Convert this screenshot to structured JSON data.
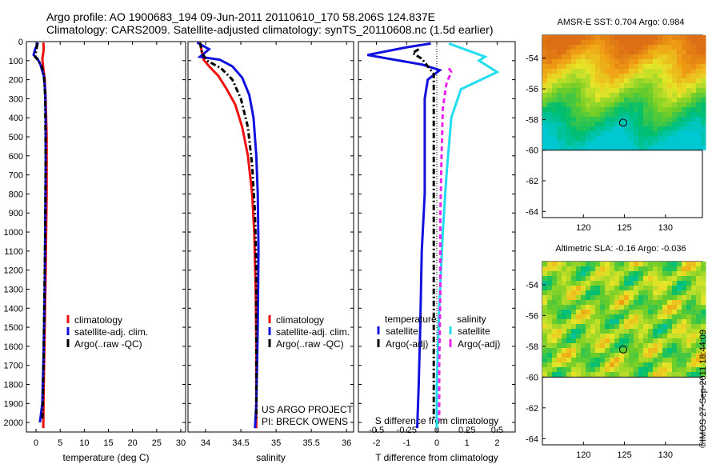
{
  "header": {
    "line1": "Argo profile: AO 1900683_194 09-Jun-2011 20110610_170 58.206S 124.837E",
    "line2": "Climatology: CARS2009. Satellite-adjusted climatology: synTS_20110608.nc (1.5d earlier)"
  },
  "side_label": "©IMOS 27-Sep-2011 18:44:09",
  "colors": {
    "climatology": "#ee1111",
    "satellite": "#1111dd",
    "argo": "#000000",
    "sal_satellite": "#22ddee",
    "sal_argo": "#ee22ee"
  },
  "chart_data": [
    {
      "type": "line",
      "xlabel": "temperature (deg C)",
      "ylabel": "",
      "xlim": [
        -2,
        31
      ],
      "ylim": [
        2050,
        0
      ],
      "xticks": [
        0,
        5,
        10,
        15,
        20,
        25,
        30
      ],
      "yticks": [
        0,
        100,
        200,
        300,
        400,
        500,
        600,
        700,
        800,
        900,
        1000,
        1100,
        1200,
        1300,
        1400,
        1500,
        1600,
        1700,
        1800,
        1900,
        2000
      ],
      "legend": [
        "climatology",
        "satellite-adj. clim.",
        "Argo(..raw -QC)"
      ],
      "legend_position": "lower-right",
      "series": [
        {
          "name": "climatology",
          "style": "solid",
          "color": "climatology",
          "points": [
            [
              1.5,
              5
            ],
            [
              1.6,
              30
            ],
            [
              1.5,
              60
            ],
            [
              1.3,
              90
            ],
            [
              1.5,
              140
            ],
            [
              1.8,
              200
            ],
            [
              2.0,
              300
            ],
            [
              2.2,
              500
            ],
            [
              2.2,
              800
            ],
            [
              2.1,
              1000
            ],
            [
              2.0,
              1200
            ],
            [
              1.8,
              1500
            ],
            [
              1.6,
              1800
            ],
            [
              1.5,
              2030
            ]
          ]
        },
        {
          "name": "satellite-adj. clim.",
          "style": "solid",
          "color": "satellite",
          "points": [
            [
              0.4,
              5
            ],
            [
              -0.2,
              40
            ],
            [
              -0.5,
              70
            ],
            [
              0.3,
              90
            ],
            [
              0.9,
              120
            ],
            [
              1.6,
              180
            ],
            [
              1.9,
              260
            ],
            [
              2.0,
              400
            ],
            [
              2.0,
              700
            ],
            [
              1.9,
              1000
            ],
            [
              1.8,
              1300
            ],
            [
              1.6,
              1600
            ],
            [
              1.3,
              1900
            ],
            [
              0.8,
              2000
            ]
          ]
        },
        {
          "name": "Argo(..raw -QC)",
          "style": "dashdot",
          "color": "argo",
          "points": [
            [
              0.3,
              10
            ],
            [
              0.0,
              50
            ],
            [
              -0.2,
              80
            ],
            [
              0.5,
              100
            ],
            [
              1.2,
              130
            ],
            [
              1.7,
              190
            ],
            [
              1.9,
              300
            ],
            [
              2.0,
              600
            ],
            [
              1.9,
              1000
            ],
            [
              1.7,
              1400
            ],
            [
              1.5,
              1800
            ],
            [
              1.3,
              1990
            ]
          ]
        }
      ]
    },
    {
      "type": "line",
      "xlabel": "salinity",
      "xlim": [
        33.75,
        36.1
      ],
      "ylim": [
        2050,
        0
      ],
      "xticks": [
        34,
        34.5,
        35,
        35.5,
        36
      ],
      "annotations": [
        "US ARGO PROJECT",
        "PI: BRECK OWENS"
      ],
      "legend": [
        "climatology",
        "satellite-adj. clim.",
        "Argo(..raw -QC)"
      ],
      "legend_position": "lower-right",
      "series": [
        {
          "name": "climatology",
          "style": "solid",
          "color": "climatology",
          "points": [
            [
              33.92,
              5
            ],
            [
              33.95,
              60
            ],
            [
              33.97,
              95
            ],
            [
              34.05,
              130
            ],
            [
              34.18,
              180
            ],
            [
              34.3,
              250
            ],
            [
              34.42,
              330
            ],
            [
              34.52,
              450
            ],
            [
              34.6,
              600
            ],
            [
              34.66,
              800
            ],
            [
              34.69,
              1000
            ],
            [
              34.71,
              1300
            ],
            [
              34.72,
              1600
            ],
            [
              34.72,
              2030
            ]
          ]
        },
        {
          "name": "satellite-adj. clim.",
          "style": "solid",
          "color": "satellite",
          "points": [
            [
              33.88,
              5
            ],
            [
              34.05,
              40
            ],
            [
              33.92,
              80
            ],
            [
              34.2,
              95
            ],
            [
              34.38,
              130
            ],
            [
              34.52,
              190
            ],
            [
              34.62,
              280
            ],
            [
              34.68,
              400
            ],
            [
              34.72,
              600
            ],
            [
              34.74,
              800
            ],
            [
              34.75,
              1100
            ],
            [
              34.74,
              1500
            ],
            [
              34.72,
              1900
            ],
            [
              34.7,
              2030
            ]
          ]
        },
        {
          "name": "Argo(..raw -QC)",
          "style": "dashdot",
          "color": "argo",
          "points": [
            [
              33.92,
              5
            ],
            [
              33.95,
              60
            ],
            [
              34.02,
              100
            ],
            [
              34.22,
              140
            ],
            [
              34.38,
              200
            ],
            [
              34.5,
              300
            ],
            [
              34.6,
              450
            ],
            [
              34.66,
              650
            ],
            [
              34.7,
              900
            ],
            [
              34.72,
              1200
            ],
            [
              34.72,
              1600
            ],
            [
              34.72,
              1990
            ]
          ]
        }
      ]
    },
    {
      "type": "line",
      "xlabel": "T difference from climatology",
      "x2label": "S difference from climatology",
      "xlim": [
        -2.6,
        2.6
      ],
      "ylim": [
        2050,
        0
      ],
      "xticks": [
        -2,
        -1,
        0,
        1,
        2
      ],
      "x2lim": [
        -0.65,
        0.65
      ],
      "x2ticks": [
        -0.5,
        -0.25,
        0,
        0.25,
        0.5
      ],
      "legend_groups": [
        {
          "title": "temperature",
          "items": [
            "satellite",
            "Argo(-adj)"
          ]
        },
        {
          "title": "salinity",
          "items": [
            "satellite",
            "Argo(-adj)"
          ]
        }
      ],
      "series": [
        {
          "name": "satellite",
          "group": "temperature",
          "style": "solid",
          "color": "satellite",
          "axis": "T",
          "points": [
            [
              -0.2,
              10
            ],
            [
              -1.0,
              30
            ],
            [
              -2.3,
              70
            ],
            [
              -1.6,
              90
            ],
            [
              -0.5,
              120
            ],
            [
              0.1,
              150
            ],
            [
              -0.3,
              200
            ],
            [
              -0.4,
              300
            ],
            [
              -0.4,
              500
            ],
            [
              -0.4,
              800
            ],
            [
              -0.5,
              1100
            ],
            [
              -0.55,
              1500
            ],
            [
              -0.6,
              1800
            ],
            [
              -0.65,
              2030
            ]
          ]
        },
        {
          "name": "Argo(-adj)",
          "group": "temperature",
          "style": "dashdot",
          "color": "argo",
          "axis": "T",
          "points": [
            [
              -0.6,
              40
            ],
            [
              -0.8,
              60
            ],
            [
              -0.5,
              90
            ],
            [
              -0.3,
              130
            ],
            [
              -0.1,
              170
            ],
            [
              -0.1,
              300
            ],
            [
              -0.1,
              600
            ],
            [
              -0.1,
              1000
            ],
            [
              -0.1,
              1400
            ],
            [
              -0.1,
              1800
            ],
            [
              -0.1,
              1990
            ]
          ]
        },
        {
          "name": "satellite",
          "group": "salinity",
          "style": "solid",
          "color": "sal_satellite",
          "axis": "S",
          "points": [
            [
              0.1,
              10
            ],
            [
              0.4,
              80
            ],
            [
              0.35,
              100
            ],
            [
              0.5,
              160
            ],
            [
              0.2,
              250
            ],
            [
              0.12,
              400
            ],
            [
              0.08,
              700
            ],
            [
              0.05,
              1000
            ],
            [
              0.02,
              1400
            ],
            [
              0.0,
              1800
            ],
            [
              0.0,
              2030
            ]
          ]
        },
        {
          "name": "Argo(-adj)",
          "group": "salinity",
          "style": "dashed",
          "color": "sal_argo",
          "axis": "S",
          "points": [
            [
              0.1,
              140
            ],
            [
              0.12,
              160
            ],
            [
              0.08,
              220
            ],
            [
              0.05,
              350
            ],
            [
              0.04,
              600
            ],
            [
              0.03,
              900
            ],
            [
              0.03,
              1300
            ],
            [
              0.02,
              1700
            ],
            [
              0.02,
              1990
            ]
          ]
        }
      ]
    },
    {
      "type": "heatmap",
      "title": "AMSR-E SST: 0.704 Argo: 0.984",
      "xlim": [
        115,
        134.5
      ],
      "ylim": [
        -64.4,
        -52.5
      ],
      "xticks": [
        120,
        125,
        130
      ],
      "yticks": [
        -54,
        -56,
        -58,
        -60,
        -62,
        -64
      ],
      "data_extent_lat": [
        -60,
        -52.5
      ],
      "marker": {
        "lon": 124.837,
        "lat": -58.206
      }
    },
    {
      "type": "heatmap",
      "title": "Altimetric SLA: -0.16 Argo: -0.036",
      "xlim": [
        115,
        134.5
      ],
      "ylim": [
        -64.4,
        -52.5
      ],
      "xticks": [
        120,
        125,
        130
      ],
      "yticks": [
        -54,
        -56,
        -58,
        -60,
        -62,
        -64
      ],
      "data_extent_lat": [
        -60,
        -52.5
      ],
      "marker": {
        "lon": 124.837,
        "lat": -58.206
      }
    }
  ]
}
